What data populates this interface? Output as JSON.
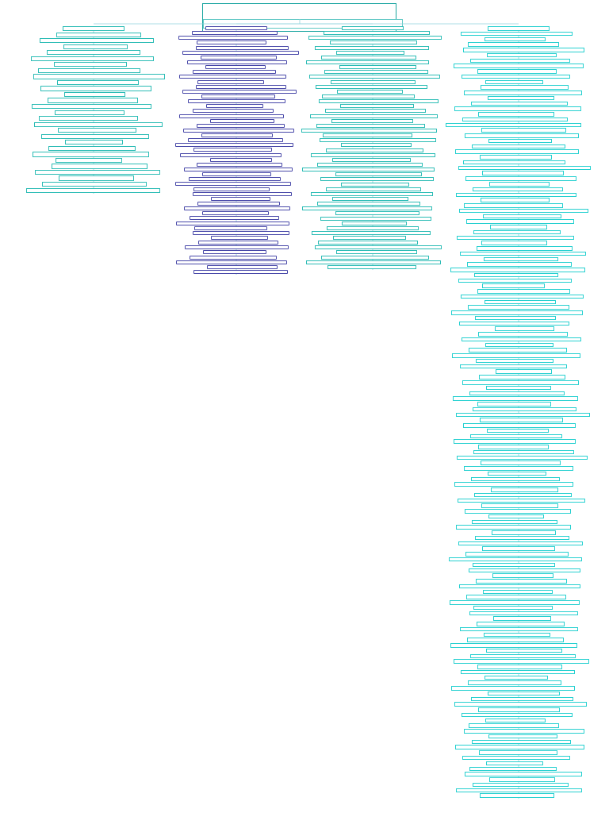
{
  "document": {
    "title_lines": [
      "",
      ""
    ],
    "subtitle": "",
    "watermark": "",
    "colors": {
      "title_border": "#1aa5a0",
      "column_1_border": "#2bbcb5",
      "column_2_border": "#4747a8",
      "column_3_border": "#2bbcb5",
      "column_4_border": "#26d0d0",
      "connector": "#8fd3dc",
      "text": "#3a3a7a"
    }
  },
  "columns": [
    {
      "heading": "",
      "items": [
        "",
        "",
        "",
        "",
        "",
        "",
        "",
        "",
        "",
        "",
        "",
        "",
        "",
        "",
        "",
        "",
        "",
        "",
        "",
        "",
        "",
        "",
        "",
        "",
        "",
        "",
        ""
      ]
    },
    {
      "heading": "",
      "items": [
        "",
        "",
        "",
        "",
        "",
        "",
        "",
        "",
        "",
        "",
        "",
        "",
        "",
        "",
        "",
        "",
        "",
        "",
        "",
        "",
        "",
        "",
        "",
        "",
        "",
        "",
        "",
        "",
        "",
        "",
        "",
        "",
        "",
        "",
        "",
        "",
        "",
        "",
        "",
        "",
        "",
        "",
        "",
        "",
        "",
        "",
        "",
        "",
        "",
        ""
      ]
    },
    {
      "heading": "",
      "items": [
        "",
        "",
        "",
        "",
        "",
        "",
        "",
        "",
        "",
        "",
        "",
        "",
        "",
        "",
        "",
        "",
        "",
        "",
        "",
        "",
        "",
        "",
        "",
        "",
        "",
        "",
        "",
        "",
        "",
        "",
        "",
        "",
        "",
        "",
        "",
        "",
        "",
        "",
        "",
        "",
        "",
        "",
        "",
        "",
        "",
        "",
        "",
        "",
        ""
      ]
    },
    {
      "heading": "",
      "items": [
        "",
        "",
        "",
        "",
        "",
        "",
        "",
        "",
        "",
        "",
        "",
        "",
        "",
        "",
        "",
        "",
        "",
        "",
        "",
        "",
        "",
        "",
        "",
        "",
        "",
        "",
        "",
        "",
        "",
        "",
        "",
        "",
        "",
        "",
        "",
        "",
        "",
        "",
        "",
        "",
        "",
        "",
        "",
        "",
        "",
        "",
        "",
        "",
        "",
        "",
        "",
        "",
        "",
        "",
        "",
        "",
        "",
        "",
        "",
        "",
        "",
        "",
        "",
        "",
        "",
        "",
        "",
        "",
        "",
        "",
        "",
        "",
        "",
        "",
        "",
        "",
        "",
        "",
        "",
        "",
        "",
        "",
        "",
        "",
        "",
        "",
        "",
        "",
        "",
        "",
        "",
        "",
        "",
        "",
        "",
        "",
        "",
        "",
        "",
        "",
        "",
        "",
        "",
        "",
        "",
        "",
        "",
        "",
        "",
        "",
        "",
        "",
        "",
        "",
        "",
        "",
        "",
        "",
        "",
        "",
        "",
        "",
        "",
        "",
        "",
        "",
        "",
        "",
        "",
        "",
        "",
        "",
        "",
        "",
        "",
        "",
        "",
        "",
        "",
        "",
        "",
        "",
        ""
      ]
    }
  ]
}
